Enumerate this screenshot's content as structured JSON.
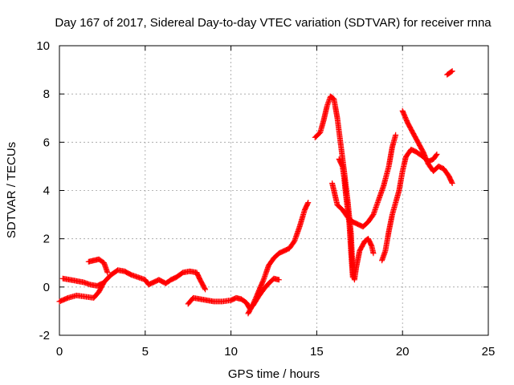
{
  "chart_data": {
    "type": "scatter",
    "title": "Day 167 of 2017, Sidereal Day-to-day VTEC variation (SDTVAR) for receiver rnna",
    "xlabel": "GPS time / hours",
    "ylabel": "SDTVAR / TECUs",
    "xlim": [
      0,
      25
    ],
    "ylim": [
      -2,
      10
    ],
    "x_ticks": [
      "0",
      "5",
      "10",
      "15",
      "20",
      "25"
    ],
    "y_ticks": [
      "-2",
      "0",
      "2",
      "4",
      "6",
      "8",
      "10"
    ],
    "grid": true,
    "marker": "+",
    "color": "#ff0000",
    "segments": [
      [
        [
          0.0,
          -0.6
        ],
        [
          0.5,
          -0.45
        ],
        [
          1.0,
          -0.35
        ],
        [
          1.5,
          -0.4
        ],
        [
          2.0,
          -0.45
        ],
        [
          2.3,
          -0.2
        ],
        [
          2.6,
          0.2
        ],
        [
          3.0,
          0.5
        ],
        [
          3.4,
          0.7
        ],
        [
          3.8,
          0.65
        ],
        [
          4.2,
          0.5
        ],
        [
          4.6,
          0.4
        ],
        [
          5.0,
          0.3
        ],
        [
          5.2,
          0.1
        ],
        [
          5.5,
          0.2
        ],
        [
          5.8,
          0.3
        ],
        [
          6.2,
          0.15
        ],
        [
          6.5,
          0.3
        ],
        [
          6.8,
          0.4
        ],
        [
          7.2,
          0.6
        ],
        [
          7.6,
          0.65
        ],
        [
          8.0,
          0.6
        ],
        [
          8.2,
          0.3
        ],
        [
          8.5,
          -0.1
        ]
      ],
      [
        [
          0.2,
          0.35
        ],
        [
          0.6,
          0.3
        ],
        [
          1.0,
          0.25
        ],
        [
          1.4,
          0.2
        ],
        [
          1.8,
          0.1
        ],
        [
          2.2,
          0.05
        ],
        [
          2.5,
          0.15
        ]
      ],
      [
        [
          1.7,
          1.05
        ],
        [
          2.0,
          1.1
        ],
        [
          2.3,
          1.15
        ],
        [
          2.6,
          1.0
        ],
        [
          2.8,
          0.6
        ]
      ],
      [
        [
          7.5,
          -0.7
        ],
        [
          7.8,
          -0.45
        ],
        [
          8.2,
          -0.5
        ],
        [
          8.6,
          -0.55
        ],
        [
          9.0,
          -0.6
        ],
        [
          9.5,
          -0.6
        ],
        [
          10.0,
          -0.55
        ],
        [
          10.3,
          -0.45
        ],
        [
          10.6,
          -0.5
        ],
        [
          10.9,
          -0.65
        ],
        [
          11.1,
          -0.9
        ],
        [
          11.3,
          -0.75
        ],
        [
          11.6,
          -0.4
        ],
        [
          11.9,
          -0.1
        ],
        [
          12.2,
          0.15
        ],
        [
          12.5,
          0.35
        ],
        [
          12.8,
          0.3
        ]
      ],
      [
        [
          11.0,
          -1.1
        ],
        [
          11.3,
          -0.7
        ],
        [
          11.6,
          -0.2
        ],
        [
          11.9,
          0.3
        ],
        [
          12.2,
          0.9
        ],
        [
          12.5,
          1.2
        ],
        [
          12.8,
          1.4
        ],
        [
          13.1,
          1.5
        ],
        [
          13.4,
          1.6
        ],
        [
          13.7,
          1.9
        ],
        [
          14.0,
          2.5
        ],
        [
          14.3,
          3.2
        ],
        [
          14.5,
          3.5
        ]
      ],
      [
        [
          14.9,
          6.2
        ],
        [
          15.2,
          6.4
        ],
        [
          15.4,
          6.9
        ],
        [
          15.6,
          7.5
        ],
        [
          15.8,
          7.9
        ],
        [
          16.0,
          7.8
        ],
        [
          16.2,
          7.0
        ],
        [
          16.4,
          5.9
        ],
        [
          16.6,
          4.8
        ],
        [
          16.8,
          3.6
        ],
        [
          17.0,
          2.2
        ],
        [
          17.1,
          0.6
        ],
        [
          17.2,
          0.3
        ],
        [
          17.3,
          0.8
        ],
        [
          17.5,
          1.5
        ],
        [
          17.8,
          1.9
        ],
        [
          18.0,
          2.0
        ],
        [
          18.2,
          1.7
        ],
        [
          18.3,
          1.4
        ]
      ],
      [
        [
          15.9,
          4.3
        ],
        [
          16.2,
          3.4
        ],
        [
          16.5,
          3.2
        ],
        [
          16.8,
          2.9
        ],
        [
          17.1,
          2.7
        ],
        [
          17.4,
          2.6
        ],
        [
          17.7,
          2.5
        ],
        [
          18.0,
          2.7
        ],
        [
          18.3,
          3.0
        ],
        [
          18.6,
          3.6
        ],
        [
          18.9,
          4.2
        ],
        [
          19.2,
          5.0
        ],
        [
          19.4,
          5.8
        ],
        [
          19.6,
          6.3
        ]
      ],
      [
        [
          16.3,
          5.3
        ],
        [
          16.5,
          5.0
        ],
        [
          16.6,
          4.5
        ],
        [
          16.7,
          3.8
        ],
        [
          16.9,
          2.6
        ],
        [
          17.0,
          1.4
        ],
        [
          17.1,
          0.4
        ]
      ],
      [
        [
          18.8,
          1.1
        ],
        [
          19.0,
          1.5
        ],
        [
          19.2,
          2.3
        ],
        [
          19.4,
          3.0
        ],
        [
          19.6,
          3.5
        ],
        [
          19.8,
          4.0
        ],
        [
          20.0,
          4.8
        ],
        [
          20.2,
          5.4
        ],
        [
          20.5,
          5.7
        ],
        [
          20.8,
          5.6
        ],
        [
          21.2,
          5.4
        ],
        [
          21.5,
          5.2
        ],
        [
          21.8,
          5.3
        ],
        [
          22.0,
          5.5
        ]
      ],
      [
        [
          20.0,
          7.3
        ],
        [
          20.3,
          6.8
        ],
        [
          20.6,
          6.4
        ],
        [
          20.9,
          6.0
        ],
        [
          21.2,
          5.6
        ],
        [
          21.5,
          5.1
        ],
        [
          21.8,
          4.8
        ],
        [
          22.1,
          5.0
        ],
        [
          22.4,
          4.9
        ],
        [
          22.7,
          4.6
        ],
        [
          22.9,
          4.3
        ]
      ],
      [
        [
          22.6,
          8.8
        ],
        [
          22.8,
          8.9
        ],
        [
          22.9,
          8.95
        ]
      ]
    ]
  }
}
